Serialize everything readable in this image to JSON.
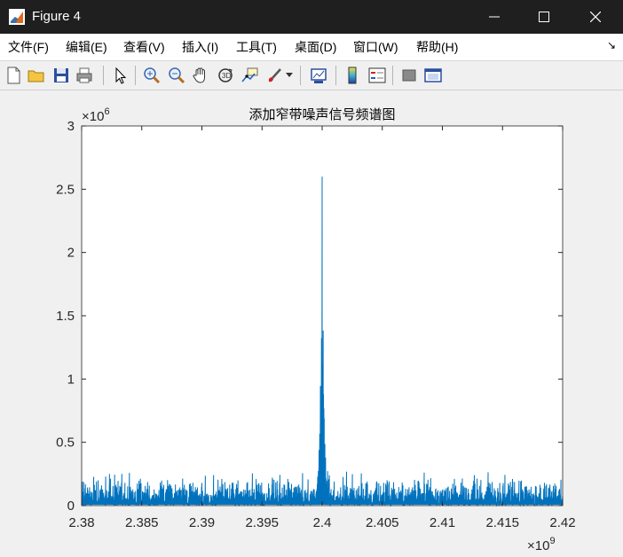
{
  "window": {
    "title": "Figure 4"
  },
  "menu": {
    "items": [
      "文件(F)",
      "编辑(E)",
      "查看(V)",
      "插入(I)",
      "工具(T)",
      "桌面(D)",
      "窗口(W)",
      "帮助(H)"
    ]
  },
  "toolbar": {
    "icons": [
      "new-figure-icon",
      "open-file-icon",
      "save-icon",
      "print-icon",
      "pointer-icon",
      "zoom-in-icon",
      "zoom-out-icon",
      "pan-icon",
      "rotate-3d-icon",
      "data-cursor-icon",
      "brush-icon",
      "link-plot-icon",
      "colorbar-icon",
      "legend-icon",
      "hide-plot-tools-icon",
      "show-plot-tools-icon"
    ]
  },
  "colors": {
    "series": "#0072bd",
    "axes": "#262626",
    "background": "#f0f0f0"
  },
  "chart_data": {
    "type": "line",
    "title": "添加窄带噪声信号频谱图",
    "xlim": [
      2380000000.0,
      2420000000.0
    ],
    "ylim": [
      0,
      3000000.0
    ],
    "x_exponent_label": "×10",
    "x_exponent": "9",
    "y_exponent_label": "×10",
    "y_exponent": "6",
    "xticks": [
      2.38,
      2.385,
      2.39,
      2.395,
      2.4,
      2.405,
      2.41,
      2.415,
      2.42
    ],
    "xtick_labels": [
      "2.38",
      "2.385",
      "2.39",
      "2.395",
      "2.4",
      "2.405",
      "2.41",
      "2.415",
      "2.42"
    ],
    "yticks": [
      0,
      0.5,
      1,
      1.5,
      2,
      2.5,
      3
    ],
    "ytick_labels": [
      "0",
      "0.5",
      "1",
      "1.5",
      "2",
      "2.5",
      "3"
    ],
    "noise_floor": 220000.0,
    "peak": {
      "x": 2400000000.0,
      "y": 2600000.0
    },
    "grid": false
  }
}
